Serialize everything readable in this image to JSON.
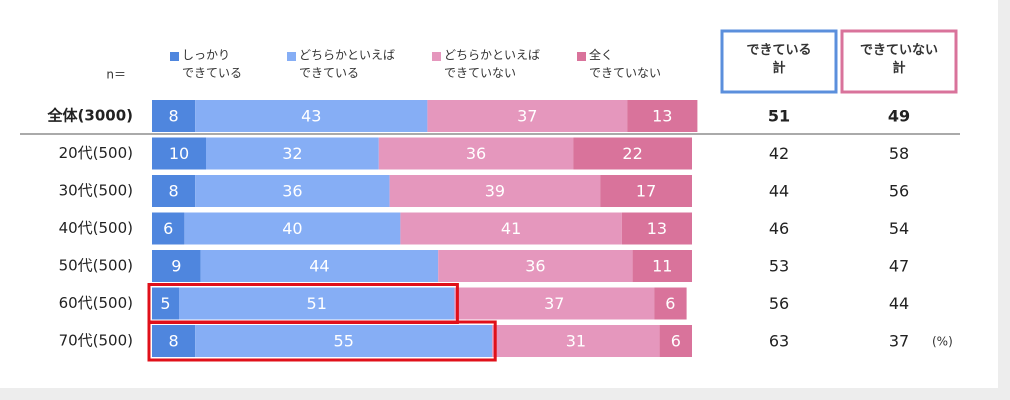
{
  "chart_data": {
    "type": "stacked_bar",
    "orientation": "horizontal",
    "n_label": "n＝",
    "categories": [
      "全体(3000)",
      "20代(500)",
      "30代(500)",
      "40代(500)",
      "50代(500)",
      "60代(500)",
      "70代(500)"
    ],
    "xlim": [
      0,
      100
    ],
    "series": [
      {
        "name": "しっかり\nできている",
        "color": "#4f86de",
        "values": [
          8,
          10,
          8,
          6,
          9,
          5,
          8
        ]
      },
      {
        "name": "どちらかといえば\nできている",
        "color": "#86aef5",
        "values": [
          43,
          32,
          36,
          40,
          44,
          51,
          55
        ]
      },
      {
        "name": "どちらかといえば\nできていない",
        "color": "#e597bd",
        "values": [
          37,
          36,
          39,
          41,
          36,
          37,
          31
        ]
      },
      {
        "name": "全く\nできていない",
        "color": "#d9739b",
        "values": [
          13,
          22,
          17,
          13,
          11,
          6,
          6
        ]
      }
    ],
    "totals": [
      {
        "name": "できている\n計",
        "color": "#5b8fdc",
        "values": [
          51,
          42,
          44,
          46,
          53,
          56,
          63
        ]
      },
      {
        "name": "できていない\n計",
        "color": "#d9739b",
        "values": [
          49,
          58,
          56,
          54,
          47,
          44,
          37
        ]
      }
    ],
    "unit": "(%)"
  }
}
